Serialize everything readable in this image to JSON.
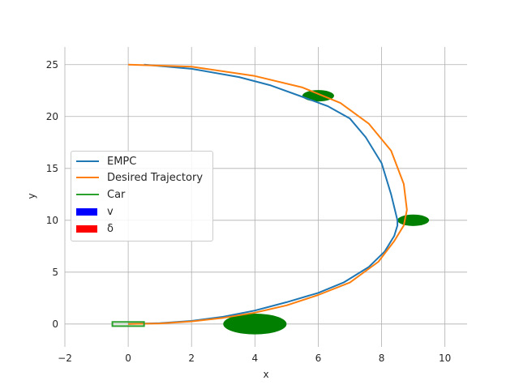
{
  "chart_data": {
    "type": "line",
    "title": "",
    "xlabel": "x",
    "ylabel": "y",
    "xlim": [
      -2,
      10.7
    ],
    "ylim": [
      -2.2,
      26.7
    ],
    "xticks": [
      "−2",
      "0",
      "2",
      "4",
      "6",
      "8",
      "10"
    ],
    "yticks": [
      "0",
      "5",
      "10",
      "15",
      "20",
      "25"
    ],
    "grid": true,
    "legend_position": "center-left",
    "series": [
      {
        "name": "EMPC",
        "color": "#1f77b4",
        "x": [
          0.5,
          2.0,
          3.5,
          4.5,
          5.5,
          6.3,
          7.0,
          7.5,
          8.0,
          8.3,
          8.5,
          8.5,
          8.4,
          8.1,
          7.6,
          6.8,
          6.0,
          5.0,
          4.0,
          3.0,
          2.0,
          1.0,
          0.0
        ],
        "y": [
          25.0,
          24.6,
          23.8,
          23.0,
          21.9,
          21.0,
          19.8,
          18.0,
          15.5,
          12.5,
          10.0,
          9.5,
          8.5,
          7.0,
          5.5,
          4.0,
          3.0,
          2.1,
          1.3,
          0.7,
          0.3,
          0.08,
          0.0
        ]
      },
      {
        "name": "Desired Trajectory",
        "color": "#ff7f0e",
        "x": [
          0.0,
          2.0,
          4.0,
          5.5,
          6.7,
          7.6,
          8.3,
          8.7,
          8.8,
          8.7,
          8.4,
          7.9,
          7.0,
          6.0,
          5.0,
          4.0,
          3.0,
          2.0,
          1.0,
          0.0
        ],
        "y": [
          25.0,
          24.8,
          23.9,
          22.8,
          21.3,
          19.3,
          16.7,
          13.5,
          11.0,
          9.5,
          8.0,
          6.0,
          4.0,
          2.8,
          1.8,
          1.1,
          0.6,
          0.25,
          0.06,
          0.0
        ]
      }
    ],
    "car": {
      "name": "Car",
      "color": "#2ca02c",
      "x": [
        -0.5,
        0.5
      ],
      "y": [
        -0.2,
        0.2
      ]
    },
    "obstacles": [
      {
        "cx": 6.0,
        "cy": 22.0,
        "rx": 0.5,
        "ry": 0.55,
        "color": "#007f00"
      },
      {
        "cx": 9.0,
        "cy": 10.0,
        "rx": 0.5,
        "ry": 0.55,
        "color": "#007f00"
      },
      {
        "cx": 4.0,
        "cy": 0.0,
        "rx": 1.0,
        "ry": 1.0,
        "color": "#007f00"
      }
    ],
    "legend": [
      {
        "kind": "line",
        "label": "EMPC",
        "color": "#1f77b4"
      },
      {
        "kind": "line",
        "label": "Desired Trajectory",
        "color": "#ff7f0e"
      },
      {
        "kind": "line",
        "label": "Car",
        "color": "#2ca02c"
      },
      {
        "kind": "patch",
        "label": "v",
        "color": "#0000ff"
      },
      {
        "kind": "patch",
        "label": "δ",
        "color": "#ff0000"
      }
    ]
  }
}
